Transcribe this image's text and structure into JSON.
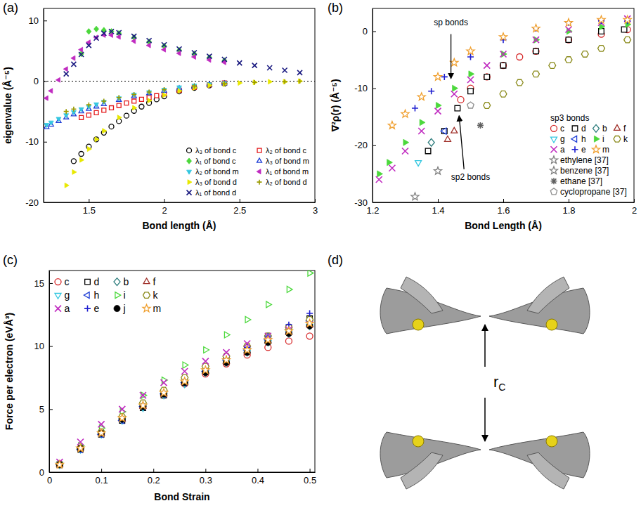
{
  "chart_data": [
    {
      "type": "scatter",
      "title": "(a)",
      "x_label": "Bond length (Å)",
      "y_label": "eigenvalue (Å⁻⁵)",
      "xlim": [
        1.2,
        3.0
      ],
      "ylim": [
        -20,
        12
      ],
      "xticks": [
        1.5,
        2,
        2.5,
        3
      ],
      "yticks": [
        -20,
        -10,
        0,
        10
      ],
      "hline": 0,
      "legend": "lower right",
      "series": [
        {
          "name": "λ₃ of bond c",
          "color": "#000000",
          "marker": "circle-open",
          "x": [
            1.4,
            1.45,
            1.5,
            1.55,
            1.6,
            1.65,
            1.7,
            1.75,
            1.8,
            1.85,
            1.9,
            1.95,
            2.0,
            2.1,
            2.2,
            2.3,
            2.4
          ],
          "values": [
            -13.2,
            -12.0,
            -10.8,
            -9.6,
            -8.5,
            -7.5,
            -6.6,
            -5.7,
            -4.9,
            -4.2,
            -3.6,
            -3.0,
            -2.5,
            -1.7,
            -1.1,
            -0.7,
            -0.4
          ]
        },
        {
          "name": "λ₂ of bond c",
          "color": "#e41a1c",
          "marker": "square-open",
          "x": [
            1.45,
            1.5,
            1.55,
            1.6,
            1.65,
            1.7,
            1.75,
            1.8,
            1.85,
            1.9,
            1.95,
            2.0,
            2.1,
            2.2,
            2.3,
            2.4
          ],
          "values": [
            -6.0,
            -5.6,
            -5.2,
            -4.8,
            -4.4,
            -4.0,
            -3.6,
            -3.3,
            -3.0,
            -2.7,
            -2.4,
            -2.1,
            -1.5,
            -1.0,
            -0.6,
            -0.3
          ]
        },
        {
          "name": "λ₁ of bond c",
          "color": "#4cd83c",
          "marker": "diamond",
          "x": [
            1.45,
            1.5,
            1.55,
            1.6,
            1.65,
            1.7,
            1.8,
            1.9,
            2.0,
            2.1,
            2.2,
            2.3,
            2.4
          ],
          "values": [
            4.5,
            8.2,
            8.6,
            8.4,
            8.2,
            7.9,
            7.2,
            6.5,
            5.8,
            5.1,
            4.5,
            3.9,
            3.4
          ]
        },
        {
          "name": "λ₃ of bond m",
          "color": "#1f3fd6",
          "marker": "triangle-up-open",
          "x": [
            1.22,
            1.25,
            1.3,
            1.35,
            1.4,
            1.45,
            1.5,
            1.55,
            1.6,
            1.7,
            1.8,
            1.9,
            2.0,
            2.1,
            2.2,
            2.3,
            2.4
          ],
          "values": [
            -7.6,
            -7.2,
            -6.6,
            -6.0,
            -5.5,
            -5.0,
            -4.6,
            -4.2,
            -3.8,
            -3.1,
            -2.5,
            -2.0,
            -1.6,
            -1.2,
            -0.9,
            -0.6,
            -0.4
          ]
        },
        {
          "name": "λ₂ of bond m",
          "color": "#33c7e0",
          "marker": "triangle-down",
          "x": [
            1.22,
            1.25,
            1.3,
            1.35,
            1.4,
            1.45,
            1.5,
            1.55,
            1.6,
            1.7,
            1.8,
            1.9,
            2.0,
            2.1,
            2.2,
            2.3,
            2.4
          ],
          "values": [
            -7.2,
            -6.8,
            -6.2,
            -5.6,
            -5.1,
            -4.6,
            -4.2,
            -3.8,
            -3.4,
            -2.8,
            -2.2,
            -1.8,
            -1.4,
            -1.0,
            -0.7,
            -0.5,
            -0.3
          ]
        },
        {
          "name": "λ₁ of bond m",
          "color": "#c02bc0",
          "marker": "triangle-left",
          "x": [
            1.22,
            1.25,
            1.3,
            1.35,
            1.4,
            1.45,
            1.5,
            1.55,
            1.6,
            1.65,
            1.7,
            1.8,
            1.9,
            2.0,
            2.1,
            2.2,
            2.3,
            2.4
          ],
          "values": [
            -2.8,
            -1.6,
            0.2,
            2.0,
            3.8,
            5.2,
            6.4,
            7.2,
            7.6,
            7.6,
            7.3,
            6.6,
            5.9,
            5.2,
            4.6,
            4.0,
            3.5,
            3.1
          ]
        },
        {
          "name": "λ₃ of bond d",
          "color": "#e8e800",
          "marker": "triangle-right",
          "x": [
            1.35,
            1.4,
            1.45,
            1.5,
            1.55,
            1.6,
            1.7,
            1.8,
            1.9,
            2.0,
            2.1,
            2.2,
            2.3,
            2.4,
            2.5,
            2.6,
            2.7,
            2.8,
            2.9
          ],
          "values": [
            -17.2,
            -15.0,
            -13.0,
            -11.2,
            -9.6,
            -8.2,
            -6.0,
            -4.4,
            -3.2,
            -2.3,
            -1.6,
            -1.1,
            -0.7,
            -0.5,
            -0.3,
            -0.2,
            -0.1,
            -0.1,
            0.0
          ]
        },
        {
          "name": "λ₂ of bond d",
          "color": "#9a9a00",
          "marker": "plus",
          "x": [
            1.35,
            1.4,
            1.5,
            1.6,
            1.7,
            1.8,
            1.9,
            2.0,
            2.2,
            2.4,
            2.6,
            2.8,
            2.9
          ],
          "values": [
            -5.0,
            -4.6,
            -3.9,
            -3.3,
            -2.7,
            -2.2,
            -1.8,
            -1.4,
            -0.8,
            -0.4,
            -0.2,
            -0.1,
            0.0
          ]
        },
        {
          "name": "λ₁ of bond d",
          "color": "#1a1a80",
          "marker": "x",
          "x": [
            1.35,
            1.4,
            1.45,
            1.5,
            1.55,
            1.6,
            1.65,
            1.7,
            1.8,
            1.9,
            2.0,
            2.1,
            2.2,
            2.3,
            2.4,
            2.5,
            2.6,
            2.7,
            2.8,
            2.9
          ],
          "values": [
            1.2,
            2.8,
            4.4,
            5.9,
            7.1,
            7.9,
            8.2,
            8.0,
            7.4,
            6.7,
            6.0,
            5.3,
            4.7,
            4.1,
            3.6,
            3.0,
            2.6,
            2.2,
            1.8,
            1.4
          ]
        }
      ]
    },
    {
      "type": "scatter",
      "title": "(b)",
      "x_label": "Bond Length (Å)",
      "y_label": "∇²ρ(r) (Å⁻⁵)",
      "xlim": [
        1.2,
        2.0
      ],
      "ylim": [
        -30,
        4
      ],
      "xticks": [
        1.2,
        1.4,
        1.6,
        1.8,
        2
      ],
      "yticks": [
        -30,
        -20,
        -10,
        0
      ],
      "legend": "lower right",
      "legend_title": "sp3 bonds",
      "annotations": [
        {
          "text": "sp bonds",
          "x": 1.44,
          "y": 1.0,
          "arrow_from": [
            1.44,
            -0.5
          ],
          "arrow_to": [
            1.44,
            -8.3
          ]
        },
        {
          "text": "sp2 bonds",
          "x": 1.5,
          "y": -26,
          "arrow_from": [
            1.48,
            -24.2
          ],
          "arrow_to": [
            1.465,
            -14.8
          ]
        }
      ],
      "series": [
        {
          "name": "c",
          "color": "#d62728",
          "marker": "circle-open",
          "x": [
            1.47,
            1.5,
            1.55,
            1.6,
            1.65,
            1.7,
            1.8,
            1.9,
            1.98
          ],
          "values": [
            -12,
            -10,
            -8,
            -6,
            -4.5,
            -3.5,
            -1.5,
            -0.5,
            0.3
          ]
        },
        {
          "name": "d",
          "color": "#000000",
          "marker": "square-open",
          "x": [
            1.37,
            1.42,
            1.46,
            1.5,
            1.55,
            1.6,
            1.7,
            1.8,
            1.9,
            1.97
          ],
          "values": [
            -21,
            -17.5,
            -13.5,
            -10.5,
            -8,
            -6,
            -3.5,
            -1.5,
            0,
            0.3
          ]
        },
        {
          "name": "b",
          "color": "#2e7d7d",
          "marker": "diamond-open",
          "x": [
            1.38
          ],
          "values": [
            -19.5
          ]
        },
        {
          "name": "f",
          "color": "#a0302a",
          "marker": "triangle-up-open",
          "x": [
            1.43,
            1.45
          ],
          "values": [
            -19,
            -17.5
          ]
        },
        {
          "name": "g",
          "color": "#33c7e0",
          "marker": "triangle-down-open",
          "x": [
            1.34
          ],
          "values": [
            -23
          ]
        },
        {
          "name": "h",
          "color": "#1f3fd6",
          "marker": "triangle-left-open",
          "x": [
            1.42
          ],
          "values": [
            -17.5
          ]
        },
        {
          "name": "i",
          "color": "#4cd83c",
          "marker": "triangle-right",
          "x": [
            1.22,
            1.25,
            1.3,
            1.35,
            1.4,
            1.45,
            1.5,
            1.6,
            1.7,
            1.8,
            1.9,
            1.98
          ],
          "values": [
            -25,
            -23,
            -19.5,
            -16,
            -13,
            -10,
            -7.5,
            -4,
            -1.5,
            0,
            0.8,
            1.2
          ]
        },
        {
          "name": "k",
          "color": "#8a8a1a",
          "marker": "hexagon-open",
          "x": [
            1.55,
            1.6,
            1.65,
            1.7,
            1.75,
            1.8,
            1.85,
            1.9,
            1.98
          ],
          "values": [
            -13,
            -11,
            -9,
            -7.5,
            -6,
            -5,
            -4,
            -3,
            -1.5
          ]
        },
        {
          "name": "a",
          "color": "#c02bc0",
          "marker": "x",
          "x": [
            1.22,
            1.26,
            1.3,
            1.35,
            1.4,
            1.45,
            1.5,
            1.55,
            1.6,
            1.7,
            1.8,
            1.9,
            1.98
          ],
          "values": [
            -26,
            -24,
            -21,
            -17.5,
            -14,
            -11,
            -8.5,
            -6,
            -4,
            -1.5,
            0.3,
            1.5,
            2.2
          ]
        },
        {
          "name": "e",
          "color": "#1f1fd0",
          "marker": "plus",
          "x": [
            1.33,
            1.38,
            1.42,
            1.5,
            1.6,
            1.7,
            1.8,
            1.9,
            1.98
          ],
          "values": [
            -13.5,
            -10.5,
            -8,
            -4.5,
            -1.5,
            0.5,
            1.5,
            1.8,
            1.8
          ]
        },
        {
          "name": "m",
          "color": "#f0a030",
          "marker": "star-open",
          "x": [
            1.26,
            1.3,
            1.35,
            1.4,
            1.45,
            1.5,
            1.6,
            1.7,
            1.8,
            1.9,
            1.98
          ],
          "values": [
            -16.5,
            -14.5,
            -11.5,
            -8,
            -5.5,
            -3.5,
            -1,
            0.5,
            1.5,
            2,
            2
          ]
        },
        {
          "name": "ethylene [37]",
          "color": "#808080",
          "marker": "star-open",
          "x": [
            1.33
          ],
          "values": [
            -29
          ]
        },
        {
          "name": "benzene [37]",
          "color": "#808080",
          "marker": "star-open",
          "x": [
            1.4
          ],
          "values": [
            -24.5
          ]
        },
        {
          "name": "ethane [37]",
          "color": "#606060",
          "marker": "asterisk",
          "x": [
            1.53
          ],
          "values": [
            -16.5
          ]
        },
        {
          "name": "cyclopropane [37]",
          "color": "#909090",
          "marker": "pentagon-open",
          "x": [
            1.5
          ],
          "values": [
            -13
          ]
        }
      ]
    },
    {
      "type": "scatter",
      "title": "(c)",
      "x_label": "Bond Strain",
      "y_label": "Force per electron (eVÅ³)",
      "xlim": [
        0,
        0.51
      ],
      "ylim": [
        0,
        16
      ],
      "xticks": [
        0,
        0.1,
        0.2,
        0.3,
        0.4,
        0.5
      ],
      "yticks": [
        0,
        5,
        10,
        15
      ],
      "legend": "upper left",
      "x": [
        0.02,
        0.06,
        0.1,
        0.14,
        0.18,
        0.22,
        0.26,
        0.3,
        0.34,
        0.38,
        0.42,
        0.46,
        0.5
      ],
      "series": [
        {
          "name": "c",
          "color": "#d62728",
          "marker": "circle-open",
          "values": [
            0.6,
            1.9,
            3.1,
            4.2,
            5.2,
            6.1,
            7.0,
            7.8,
            8.6,
            9.3,
            9.9,
            10.4,
            10.8
          ]
        },
        {
          "name": "d",
          "color": "#000000",
          "marker": "square-open",
          "values": [
            0.6,
            1.8,
            3.0,
            4.1,
            5.1,
            6.1,
            7.1,
            8.0,
            8.9,
            9.8,
            10.6,
            11.4,
            12.2
          ]
        },
        {
          "name": "b",
          "color": "#2e7d7d",
          "marker": "diamond-open",
          "values": [
            0.6,
            1.9,
            3.1,
            4.2,
            5.3,
            6.3,
            7.2,
            8.1,
            9.0,
            9.8,
            10.6,
            11.3,
            12.0
          ]
        },
        {
          "name": "f",
          "color": "#a0302a",
          "marker": "triangle-up-open",
          "values": [
            0.6,
            1.9,
            3.1,
            4.2,
            5.2,
            6.2,
            7.1,
            8.0,
            8.8,
            9.6,
            10.4,
            11.1,
            11.7
          ]
        },
        {
          "name": "g",
          "color": "#33c7e0",
          "marker": "triangle-down-open",
          "values": [
            0.6,
            1.8,
            3.0,
            4.1,
            5.1,
            6.1,
            7.0,
            7.9,
            8.7,
            9.5,
            10.3,
            11.0,
            11.6
          ]
        },
        {
          "name": "h",
          "color": "#1f3fd6",
          "marker": "triangle-left-open",
          "values": [
            0.6,
            1.8,
            3.0,
            4.1,
            5.2,
            6.2,
            7.1,
            8.0,
            8.9,
            9.7,
            10.5,
            11.3,
            12.0
          ]
        },
        {
          "name": "i",
          "color": "#4cd83c",
          "marker": "triangle-right-open",
          "values": [
            0.7,
            2.1,
            3.5,
            4.8,
            6.1,
            7.3,
            8.5,
            9.7,
            10.9,
            12.1,
            13.3,
            14.5,
            15.8
          ]
        },
        {
          "name": "k",
          "color": "#8a8a1a",
          "marker": "hexagon-open",
          "values": [
            0.6,
            1.9,
            3.2,
            4.4,
            5.5,
            6.5,
            7.5,
            8.4,
            9.2,
            10.0,
            10.8,
            11.5,
            12.1
          ]
        },
        {
          "name": "a",
          "color": "#c02bc0",
          "marker": "x",
          "values": [
            0.8,
            2.4,
            3.8,
            5.0,
            6.1,
            7.1,
            8.0,
            8.8,
            9.5,
            10.2,
            10.8,
            11.3,
            11.7
          ]
        },
        {
          "name": "e",
          "color": "#1f1fd0",
          "marker": "plus",
          "values": [
            0.6,
            1.8,
            3.0,
            4.1,
            5.2,
            6.2,
            7.2,
            8.1,
            9.0,
            9.9,
            10.8,
            11.7,
            12.6
          ]
        },
        {
          "name": "j",
          "color": "#000000",
          "marker": "circle",
          "values": [
            0.6,
            1.9,
            3.1,
            4.2,
            5.2,
            6.2,
            7.1,
            7.9,
            8.7,
            9.5,
            10.3,
            11.0,
            11.6
          ]
        },
        {
          "name": "m",
          "color": "#f0a030",
          "marker": "star-open",
          "values": [
            0.6,
            1.9,
            3.1,
            4.3,
            5.3,
            6.3,
            7.2,
            8.1,
            8.9,
            9.7,
            10.5,
            11.2,
            11.8
          ]
        }
      ]
    }
  ],
  "diagram": {
    "title": "(d)",
    "label": "r",
    "label_subscript": "C"
  }
}
